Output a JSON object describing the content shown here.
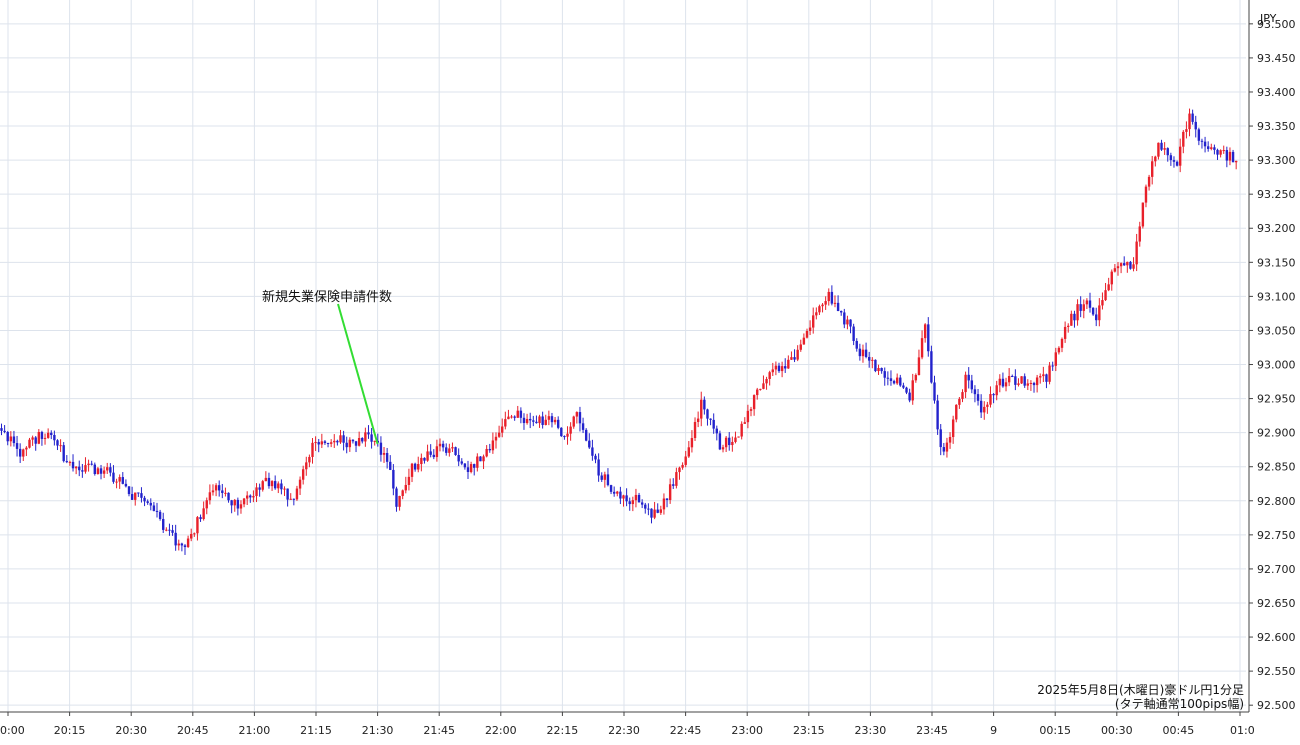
{
  "chart_data": {
    "type": "candlestick",
    "currency": "JPY",
    "y_ticks": [
      "92.500",
      "92.550",
      "92.600",
      "92.650",
      "92.700",
      "92.750",
      "92.800",
      "92.850",
      "92.900",
      "92.950",
      "93.000",
      "93.050",
      "93.100",
      "93.150",
      "93.200",
      "93.250",
      "93.300",
      "93.350",
      "93.400",
      "93.450",
      "93.500"
    ],
    "ylim": [
      92.49,
      93.535
    ],
    "x_ticks": [
      "0:00",
      "20:15",
      "20:30",
      "20:45",
      "21:00",
      "21:15",
      "21:30",
      "21:45",
      "22:00",
      "22:15",
      "22:30",
      "22:45",
      "23:00",
      "23:15",
      "23:30",
      "23:45",
      "9",
      "00:15",
      "00:30",
      "00:45",
      "01:0"
    ],
    "annotation": {
      "label": "新規失業保険申請件数",
      "time": "21:30"
    },
    "caption": [
      "2025年5月8日(木曜日)豪ドル円1分足",
      "(タテ軸通常100pips幅)"
    ],
    "colors": {
      "up": "#e8202a",
      "down": "#2222cc",
      "grid": "#dde3ec",
      "annotation_line": "#33dd33"
    },
    "close_anchors": [
      [
        0,
        92.905
      ],
      [
        6,
        92.87
      ],
      [
        10,
        92.89
      ],
      [
        16,
        92.9
      ],
      [
        22,
        92.85
      ],
      [
        28,
        92.85
      ],
      [
        35,
        92.84
      ],
      [
        42,
        92.81
      ],
      [
        48,
        92.79
      ],
      [
        56,
        92.74
      ],
      [
        60,
        92.74
      ],
      [
        66,
        92.8
      ],
      [
        70,
        92.82
      ],
      [
        76,
        92.79
      ],
      [
        84,
        92.83
      ],
      [
        90,
        92.815
      ],
      [
        94,
        92.8
      ],
      [
        100,
        92.88
      ],
      [
        106,
        92.89
      ],
      [
        114,
        92.885
      ],
      [
        118,
        92.9
      ],
      [
        124,
        92.86
      ],
      [
        127,
        92.8
      ],
      [
        132,
        92.85
      ],
      [
        138,
        92.87
      ],
      [
        144,
        92.88
      ],
      [
        150,
        92.85
      ],
      [
        154,
        92.86
      ],
      [
        158,
        92.88
      ],
      [
        164,
        92.93
      ],
      [
        170,
        92.91
      ],
      [
        175,
        92.92
      ],
      [
        181,
        92.9
      ],
      [
        185,
        92.93
      ],
      [
        190,
        92.86
      ],
      [
        194,
        92.83
      ],
      [
        199,
        92.8
      ],
      [
        204,
        92.8
      ],
      [
        209,
        92.78
      ],
      [
        213,
        92.8
      ],
      [
        219,
        92.85
      ],
      [
        225,
        92.94
      ],
      [
        231,
        92.88
      ],
      [
        237,
        92.9
      ],
      [
        243,
        92.96
      ],
      [
        249,
        92.99
      ],
      [
        255,
        93.01
      ],
      [
        261,
        93.07
      ],
      [
        266,
        93.1
      ],
      [
        272,
        93.06
      ],
      [
        276,
        93.02
      ],
      [
        282,
        92.99
      ],
      [
        287,
        92.98
      ],
      [
        292,
        92.95
      ],
      [
        297,
        93.05
      ],
      [
        302,
        92.87
      ],
      [
        305,
        92.9
      ],
      [
        310,
        92.98
      ],
      [
        315,
        92.93
      ],
      [
        320,
        92.97
      ],
      [
        325,
        92.98
      ],
      [
        330,
        92.97
      ],
      [
        336,
        92.98
      ],
      [
        343,
        93.06
      ],
      [
        349,
        93.1
      ],
      [
        352,
        93.07
      ],
      [
        358,
        93.14
      ],
      [
        364,
        93.15
      ],
      [
        368,
        93.26
      ],
      [
        372,
        93.32
      ],
      [
        378,
        93.3
      ],
      [
        382,
        93.37
      ],
      [
        386,
        93.32
      ],
      [
        392,
        93.31
      ],
      [
        397,
        93.3
      ]
    ],
    "seed": 20250508
  }
}
